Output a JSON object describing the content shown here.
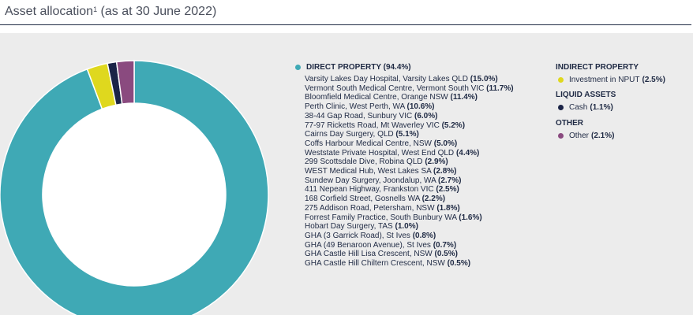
{
  "title": {
    "text": "Asset allocation",
    "sup": "1",
    "suffix": " (as at 30 June 2022)"
  },
  "colors": {
    "direct": "#3fa9b5",
    "indirect": "#dfd81e",
    "liquid": "#1b2447",
    "other": "#8a4a7f",
    "panel": "#ececec"
  },
  "chart_data": {
    "type": "pie",
    "donut": true,
    "slices": [
      {
        "label": "Direct property",
        "value": 94.4,
        "color": "#3fa9b5"
      },
      {
        "label": "Investment in NPUT",
        "value": 2.5,
        "color": "#dfd81e"
      },
      {
        "label": "Cash",
        "value": 1.1,
        "color": "#1b2447"
      },
      {
        "label": "Other",
        "value": 2.1,
        "color": "#8a4a7f"
      }
    ]
  },
  "legend": {
    "direct": {
      "heading": "DIRECT PROPERTY (94.4%)",
      "items": [
        {
          "name": "Varsity Lakes Day Hospital, Varsity Lakes QLD",
          "pct": "(15.0%)"
        },
        {
          "name": "Vermont South Medical Centre, Vermont South VIC ",
          "pct": "(11.7%)"
        },
        {
          "name": "Bloomfield Medical Centre, Orange NSW",
          "pct": "(11.4%)"
        },
        {
          "name": "Perth Clinic, West Perth, WA",
          "pct": "(10.6%)"
        },
        {
          "name": "38-44 Gap Road, Sunbury VIC",
          "pct": "(6.0%)"
        },
        {
          "name": "77-97 Ricketts Road, Mt Waverley VIC",
          "pct": "(5.2%)"
        },
        {
          "name": "Cairns Day Surgery, QLD",
          "pct": "(5.1%)"
        },
        {
          "name": "Coffs Harbour Medical Centre, NSW",
          "pct": "(5.0%)"
        },
        {
          "name": "Weststate Private Hospital, West End QLD",
          "pct": "(4.4%)"
        },
        {
          "name": "299 Scottsdale Dive, Robina QLD",
          "pct": "(2.9%)"
        },
        {
          "name": "WEST Medical Hub, West Lakes SA",
          "pct": "(2.8%)"
        },
        {
          "name": "Sundew Day Surgery, Joondalup, WA",
          "pct": "(2.7%)"
        },
        {
          "name": "411 Nepean Highway, Frankston VIC",
          "pct": "(2.5%)"
        },
        {
          "name": "168 Corfield Street, Gosnells WA",
          "pct": "(2.2%)"
        },
        {
          "name": "275 Addison Road, Petersham, NSW",
          "pct": "(1.8%)"
        },
        {
          "name": "Forrest Family Practice, South Bunbury WA",
          "pct": "(1.6%)"
        },
        {
          "name": "Hobart Day Surgery, TAS",
          "pct": "(1.0%)"
        },
        {
          "name": "GHA (3 Garrick Road), St Ives",
          "pct": "(0.8%)"
        },
        {
          "name": "GHA (49 Benaroon Avenue), St Ives",
          "pct": "(0.7%)"
        },
        {
          "name": "GHA Castle Hill Lisa Crescent, NSW",
          "pct": "(0.5%)"
        },
        {
          "name": "GHA Castle Hill Chiltern Crescent, NSW",
          "pct": "(0.5%)"
        }
      ]
    },
    "indirect": {
      "heading": "INDIRECT PROPERTY",
      "item": "Investment in NPUT",
      "pct": "(2.5%)"
    },
    "liquid": {
      "heading": "LIQUID ASSETS",
      "item": "Cash",
      "pct": "(1.1%)"
    },
    "other": {
      "heading": "OTHER",
      "item": "Other",
      "pct": "(2.1%)"
    }
  }
}
